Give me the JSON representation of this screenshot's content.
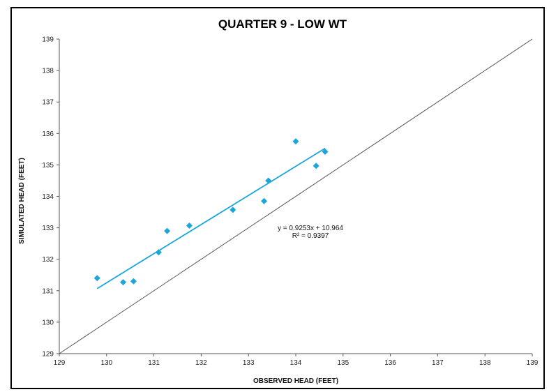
{
  "chart_data": {
    "type": "scatter",
    "title": "QUARTER 9 - LOW WT",
    "xlabel": "OBSERVED HEAD (FEET)",
    "ylabel": "SIMULATED HEAD (FEET)",
    "xlim": [
      129,
      139
    ],
    "ylim": [
      129,
      139
    ],
    "xticks": [
      "129",
      "130",
      "131",
      "132",
      "133",
      "134",
      "135",
      "136",
      "137",
      "138",
      "139"
    ],
    "yticks": [
      "129",
      "130",
      "131",
      "132",
      "133",
      "134",
      "135",
      "136",
      "137",
      "138",
      "139"
    ],
    "grid": false,
    "points": [
      {
        "x": 129.8,
        "y": 131.4
      },
      {
        "x": 130.35,
        "y": 131.27
      },
      {
        "x": 130.57,
        "y": 131.3
      },
      {
        "x": 131.1,
        "y": 132.22
      },
      {
        "x": 131.28,
        "y": 132.9
      },
      {
        "x": 131.75,
        "y": 133.07
      },
      {
        "x": 132.67,
        "y": 133.57
      },
      {
        "x": 133.33,
        "y": 133.85
      },
      {
        "x": 133.42,
        "y": 134.5
      },
      {
        "x": 134.0,
        "y": 135.75
      },
      {
        "x": 134.43,
        "y": 134.97
      },
      {
        "x": 134.62,
        "y": 135.42
      }
    ],
    "reference_line": {
      "from": [
        129,
        129
      ],
      "to": [
        139,
        139
      ],
      "color": "#555555"
    },
    "trendline": {
      "slope": 0.9253,
      "intercept": 10.964,
      "x_range": [
        129.8,
        134.62
      ],
      "color": "#1aa6dc"
    },
    "annotations": {
      "equation": "y = 0.9253x + 10.964",
      "r_squared": "R² = 0.9397"
    },
    "colors": {
      "points": "#1aa6dc",
      "trendline": "#1aa6dc",
      "axes": "#555555"
    }
  }
}
